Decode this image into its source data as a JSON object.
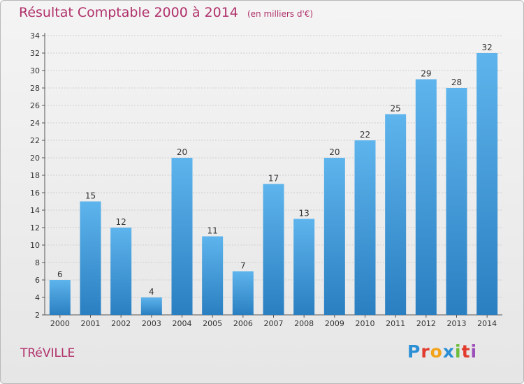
{
  "title": {
    "main": "Résultat Comptable 2000 à 2014",
    "unit": "(en milliers d'€)"
  },
  "commune": "TRéVILLE",
  "logo": {
    "letters": [
      "P",
      "r",
      "o",
      "x",
      "i",
      "t",
      "i"
    ],
    "colors": [
      "#2b8fd6",
      "#e23b2e",
      "#f2a31b",
      "#2b8fd6",
      "#6bbd3a",
      "#e23b2e",
      "#9c4fb8"
    ]
  },
  "colors": {
    "title": "#b0306a",
    "bar_top": "#5eb4ec",
    "bar_bottom": "#2a7fc1",
    "grid": "#cfcfcf"
  },
  "chart_data": {
    "type": "bar",
    "title": "Résultat Comptable 2000 à 2014",
    "xlabel": "",
    "ylabel": "",
    "categories": [
      "2000",
      "2001",
      "2002",
      "2003",
      "2004",
      "2005",
      "2006",
      "2007",
      "2008",
      "2009",
      "2010",
      "2011",
      "2012",
      "2013",
      "2014"
    ],
    "values": [
      6,
      15,
      12,
      4,
      20,
      11,
      7,
      17,
      13,
      20,
      22,
      25,
      29,
      28,
      32
    ],
    "ylim": [
      2,
      34
    ],
    "yticks": [
      2,
      4,
      6,
      8,
      10,
      12,
      14,
      16,
      18,
      20,
      22,
      24,
      26,
      28,
      30,
      32,
      34
    ],
    "grid": true
  }
}
